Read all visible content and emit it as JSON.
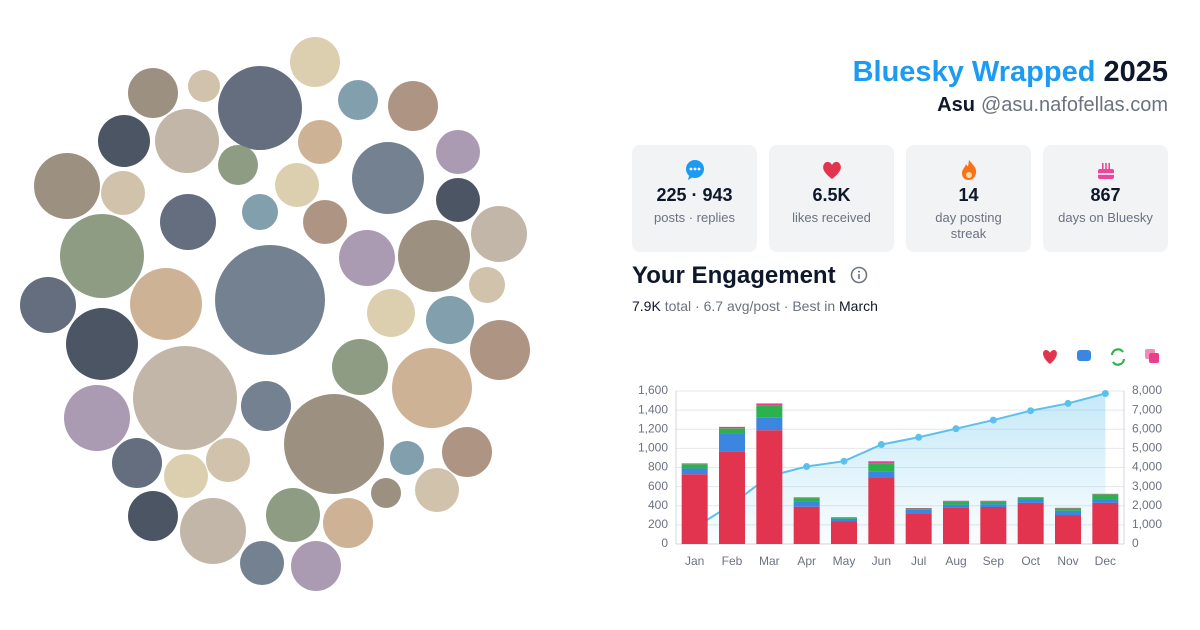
{
  "header": {
    "title": "Bluesky Wrapped",
    "year": "2025",
    "name": "Asu",
    "handle": "@asu.nafofellas.com"
  },
  "stats": [
    {
      "value": "225 · 943",
      "label": "posts · replies"
    },
    {
      "value": "6.5K",
      "label": "likes received"
    },
    {
      "value": "14",
      "label": "day posting streak"
    },
    {
      "value": "867",
      "label": "days on Bluesky"
    }
  ],
  "engagement": {
    "title": "Your Engagement",
    "total": "7.9K",
    "summary": "total · 6.7 avg/post · Best in",
    "best_month": "March"
  },
  "chart_data": {
    "type": "bar",
    "stacked": true,
    "categories": [
      "Jan",
      "Feb",
      "Mar",
      "Apr",
      "May",
      "Jun",
      "Jul",
      "Aug",
      "Sep",
      "Oct",
      "Nov",
      "Dec"
    ],
    "series": [
      {
        "color": "#e3344f",
        "values": [
          730,
          970,
          1190,
          390,
          240,
          690,
          314,
          377,
          387,
          430,
          303,
          430
        ]
      },
      {
        "color": "#3a86e0",
        "values": [
          60,
          190,
          135,
          50,
          25,
          70,
          45,
          35,
          30,
          40,
          45,
          35
        ]
      },
      {
        "color": "#2bb24c",
        "values": [
          45,
          50,
          125,
          40,
          12,
          85,
          12,
          35,
          30,
          15,
          25,
          55
        ]
      },
      {
        "color": "#e83e8c",
        "values": [
          8,
          15,
          20,
          8,
          3,
          20,
          5,
          5,
          5,
          5,
          5,
          5
        ]
      },
      {
        "type": "line",
        "axis": "y2",
        "color": "#5bc0eb",
        "values": [
          848,
          2080,
          3550,
          4050,
          4330,
          5200,
          5580,
          6030,
          6480,
          6970,
          7350,
          7870
        ]
      }
    ],
    "ylim": [
      0,
      1600
    ],
    "yticks": [
      0,
      200,
      400,
      600,
      800,
      {
        "value": 1000,
        "label": "1,000"
      },
      {
        "value": 1200,
        "label": "1,200"
      },
      {
        "value": 1400,
        "label": "1,400"
      },
      {
        "value": 1600,
        "label": "1,600"
      }
    ],
    "y2lim": [
      0,
      8000
    ],
    "y2ticks": [
      0,
      {
        "value": 1000,
        "label": "1,000"
      },
      {
        "value": 2000,
        "label": "2,000"
      },
      {
        "value": 3000,
        "label": "3,000"
      },
      {
        "value": 4000,
        "label": "4,000"
      },
      {
        "value": 5000,
        "label": "5,000"
      },
      {
        "value": 6000,
        "label": "6,000"
      },
      {
        "value": 7000,
        "label": "7,000"
      },
      {
        "value": 8000,
        "label": "8,000"
      }
    ],
    "grid": true
  }
}
